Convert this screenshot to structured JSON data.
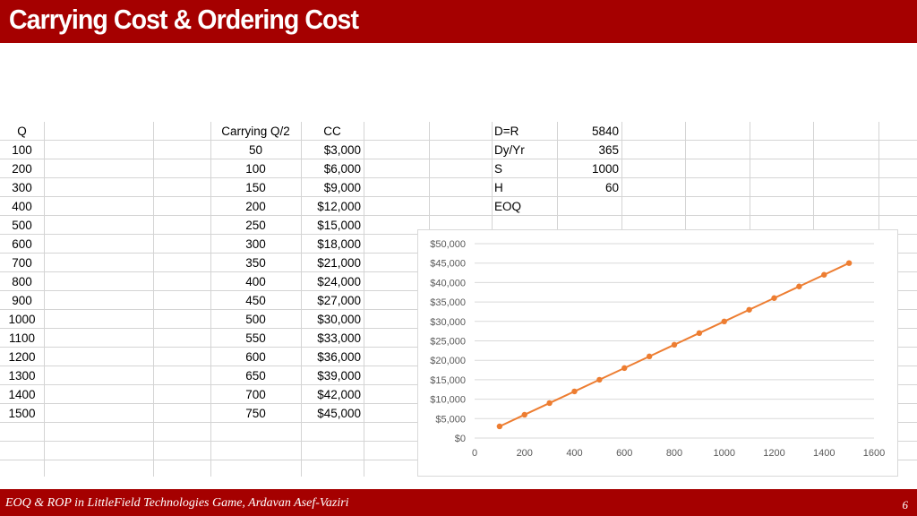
{
  "slide": {
    "title": "Carrying Cost & Ordering Cost",
    "footer": "EOQ & ROP in LittleField Technologies Game, Ardavan Asef-Vaziri",
    "page_number": "6"
  },
  "table": {
    "headers": {
      "q": "Q",
      "carrying": "Carrying Q/2",
      "cc": "CC"
    },
    "rows": [
      {
        "q": "100",
        "half": "50",
        "cc": "$3,000"
      },
      {
        "q": "200",
        "half": "100",
        "cc": "$6,000"
      },
      {
        "q": "300",
        "half": "150",
        "cc": "$9,000"
      },
      {
        "q": "400",
        "half": "200",
        "cc": "$12,000"
      },
      {
        "q": "500",
        "half": "250",
        "cc": "$15,000"
      },
      {
        "q": "600",
        "half": "300",
        "cc": "$18,000"
      },
      {
        "q": "700",
        "half": "350",
        "cc": "$21,000"
      },
      {
        "q": "800",
        "half": "400",
        "cc": "$24,000"
      },
      {
        "q": "900",
        "half": "450",
        "cc": "$27,000"
      },
      {
        "q": "1000",
        "half": "500",
        "cc": "$30,000"
      },
      {
        "q": "1100",
        "half": "550",
        "cc": "$33,000"
      },
      {
        "q": "1200",
        "half": "600",
        "cc": "$36,000"
      },
      {
        "q": "1300",
        "half": "650",
        "cc": "$39,000"
      },
      {
        "q": "1400",
        "half": "700",
        "cc": "$42,000"
      },
      {
        "q": "1500",
        "half": "750",
        "cc": "$45,000"
      }
    ]
  },
  "params": [
    {
      "label": "D=R",
      "value": "5840"
    },
    {
      "label": "Dy/Yr",
      "value": "365"
    },
    {
      "label": "S",
      "value": "1000"
    },
    {
      "label": "H",
      "value": "60"
    },
    {
      "label": "EOQ",
      "value": ""
    }
  ],
  "chart_data": {
    "type": "scatter",
    "title": "",
    "xlabel": "",
    "ylabel": "",
    "xlim": [
      0,
      1600
    ],
    "ylim": [
      0,
      50000
    ],
    "x_ticks": [
      0,
      200,
      400,
      600,
      800,
      1000,
      1200,
      1400,
      1600
    ],
    "y_ticks": [
      0,
      5000,
      10000,
      15000,
      20000,
      25000,
      30000,
      35000,
      40000,
      45000,
      50000
    ],
    "x_tick_labels": [
      "0",
      "200",
      "400",
      "600",
      "800",
      "1000",
      "1200",
      "1400",
      "1600"
    ],
    "y_tick_labels": [
      "$0",
      "$5,000",
      "$10,000",
      "$15,000",
      "$20,000",
      "$25,000",
      "$30,000",
      "$35,000",
      "$40,000",
      "$45,000",
      "$50,000"
    ],
    "grid": true,
    "series": [
      {
        "color": "#ed7d31",
        "x": [
          100,
          200,
          300,
          400,
          500,
          600,
          700,
          800,
          900,
          1000,
          1100,
          1200,
          1300,
          1400,
          1500
        ],
        "y": [
          3000,
          6000,
          9000,
          12000,
          15000,
          18000,
          21000,
          24000,
          27000,
          30000,
          33000,
          36000,
          39000,
          42000,
          45000
        ]
      }
    ]
  }
}
